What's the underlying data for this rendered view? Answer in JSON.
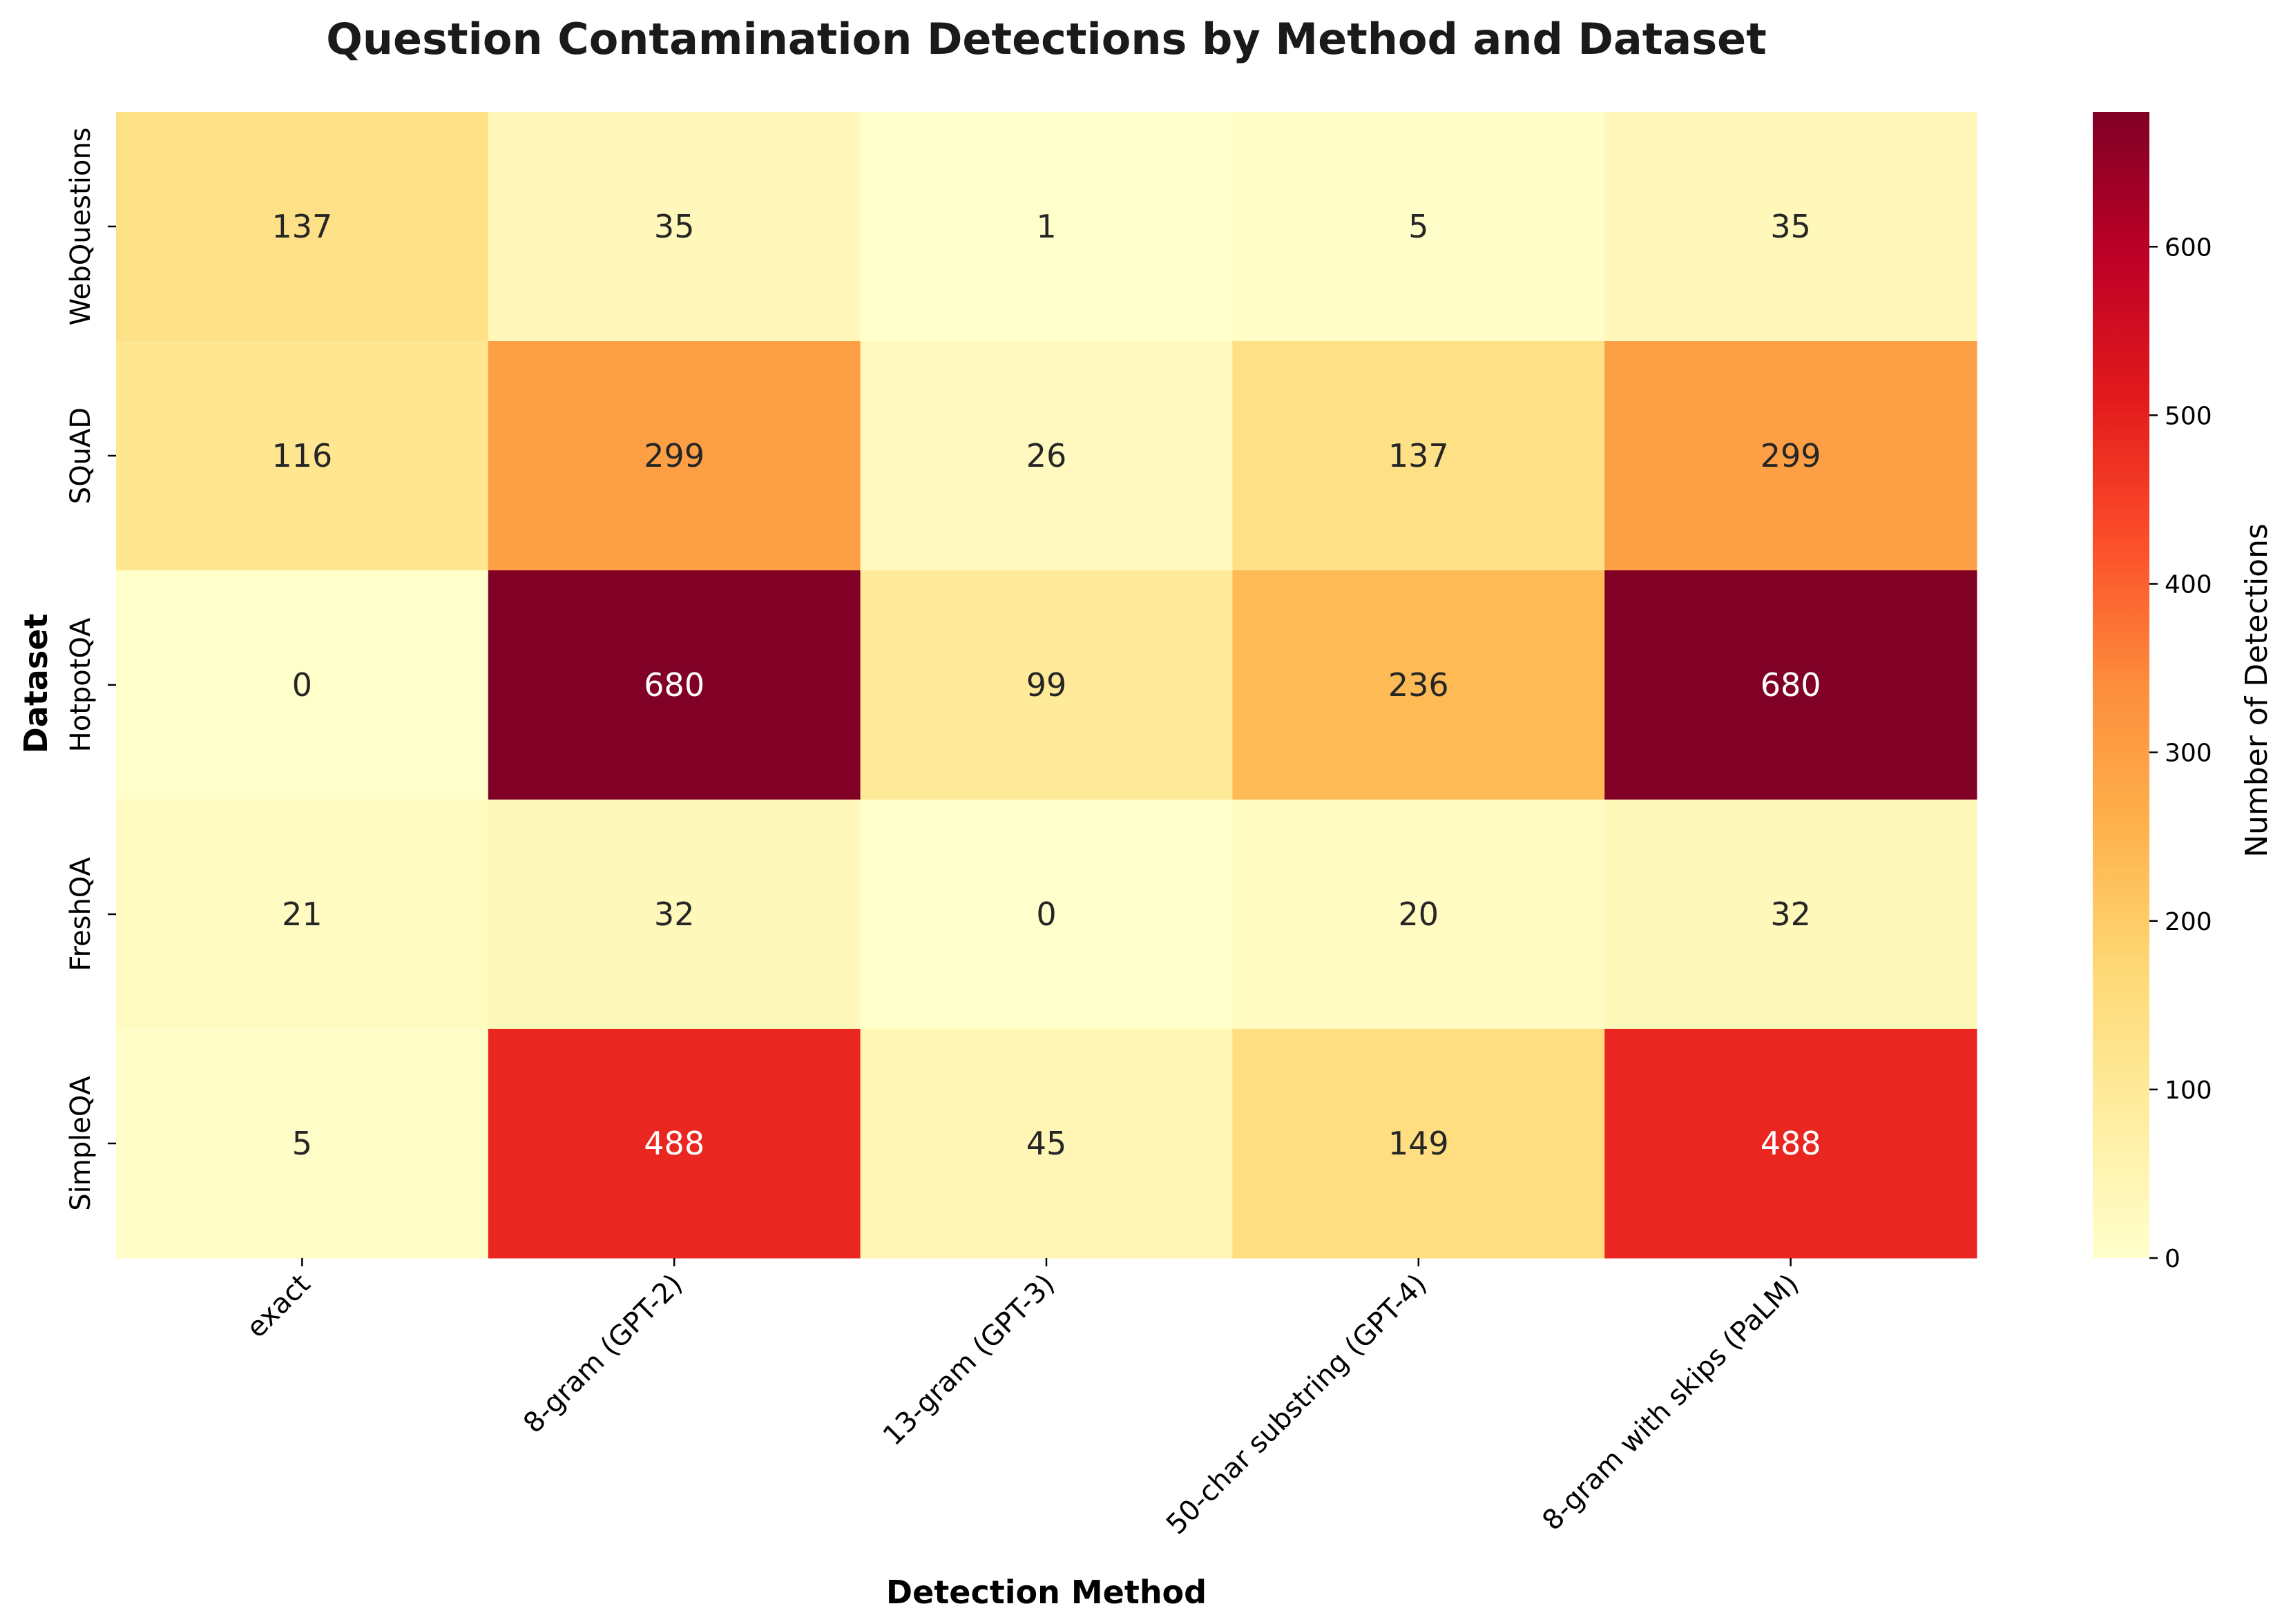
{
  "chart_data": {
    "type": "heatmap",
    "title": "Question Contamination Detections by Method and Dataset",
    "xlabel": "Detection Method",
    "ylabel": "Dataset",
    "x_categories": [
      "exact",
      "8-gram (GPT-2)",
      "13-gram (GPT-3)",
      "50-char substring (GPT-4)",
      "8-gram with skips (PaLM)"
    ],
    "y_categories": [
      "WebQuestions",
      "SQuAD",
      "HotpotQA",
      "FreshQA",
      "SimpleQA"
    ],
    "values": [
      [
        137,
        35,
        1,
        5,
        35
      ],
      [
        116,
        299,
        26,
        137,
        299
      ],
      [
        0,
        680,
        99,
        236,
        680
      ],
      [
        21,
        32,
        0,
        20,
        32
      ],
      [
        5,
        488,
        45,
        149,
        488
      ]
    ],
    "colorscale": "YlOrRd",
    "vmin": 0,
    "vmax": 680,
    "colorbar_label": "Number of Detections",
    "colorbar_ticks": [
      0,
      100,
      200,
      300,
      400,
      500,
      600
    ],
    "annotations": true
  }
}
